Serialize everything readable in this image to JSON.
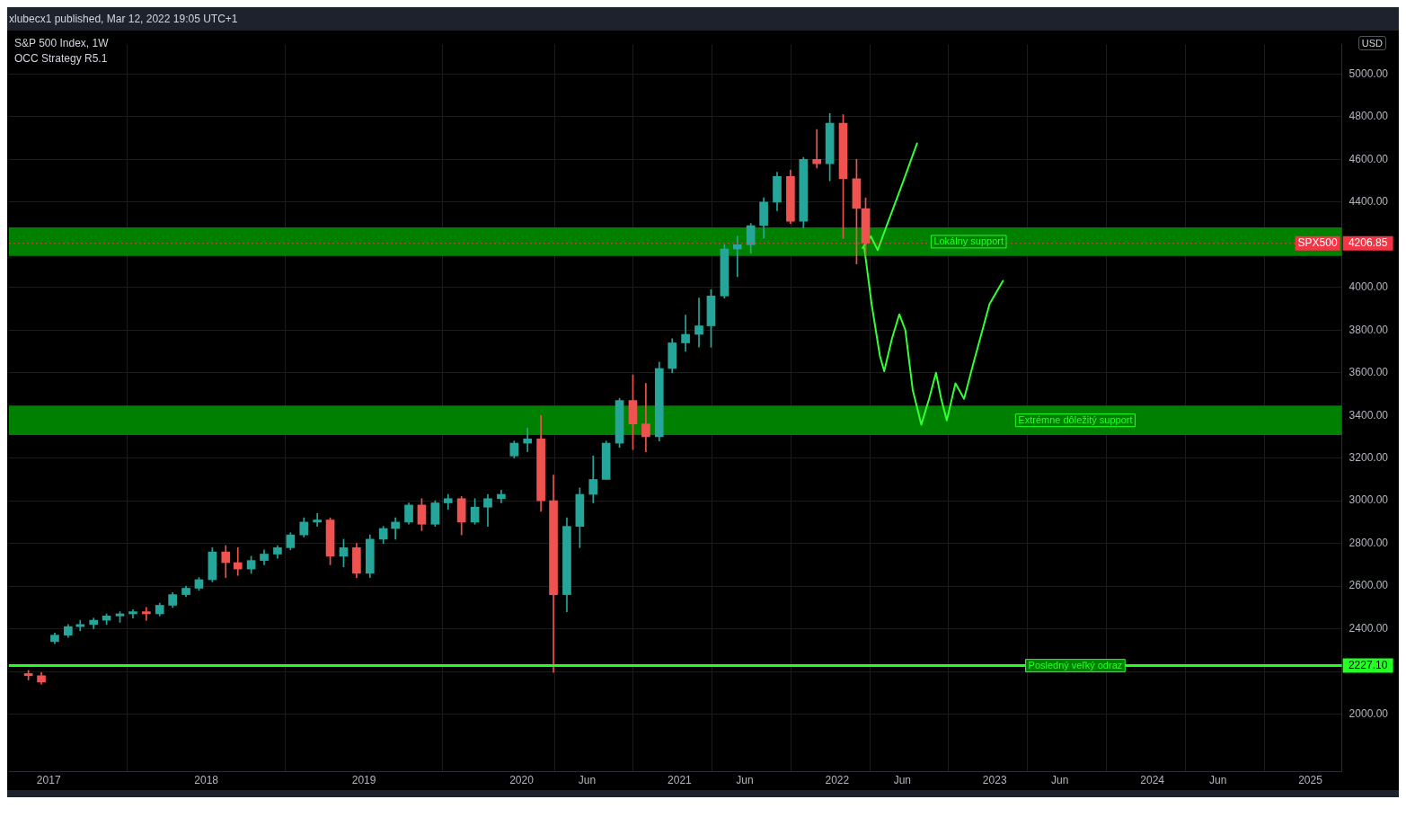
{
  "chart_data": {
    "type": "candlestick",
    "title": "S&P 500 Index, 1W",
    "subtitle": "OCC Strategy R5.1",
    "annotations": [
      "xlubecx1 published, Mar 12, 2022 19:05 UTC+1",
      "USD",
      "SPX500",
      "2227.10"
    ],
    "x": [
      "2016-11-15",
      "2016-12-15",
      "2017-01-15",
      "2017-02-15",
      "2017-03-15",
      "2017-04-15",
      "2017-05-15",
      "2017-06-15",
      "2017-07-15",
      "2017-08-15",
      "2017-09-15",
      "2017-10-15",
      "2017-11-15",
      "2017-12-15",
      "2018-01-15",
      "2018-02-15",
      "2018-03-15",
      "2018-04-15",
      "2018-05-15",
      "2018-06-15",
      "2018-07-15",
      "2018-08-15",
      "2018-09-15",
      "2018-10-15",
      "2018-11-15",
      "2018-12-15",
      "2019-01-15",
      "2019-02-15",
      "2019-03-15",
      "2019-04-15",
      "2019-05-15",
      "2019-06-15",
      "2019-07-15",
      "2019-08-15",
      "2019-09-15",
      "2019-10-15",
      "2019-11-15",
      "2019-12-15",
      "2020-01-15",
      "2020-02-15",
      "2020-03-15",
      "2020-04-15",
      "2020-05-15",
      "2020-06-15",
      "2020-07-15",
      "2020-08-15",
      "2020-09-15",
      "2020-10-15",
      "2020-11-15",
      "2020-12-15",
      "2021-01-15",
      "2021-02-15",
      "2021-03-15",
      "2021-04-15",
      "2021-05-15",
      "2021-06-15",
      "2021-07-15",
      "2021-08-15",
      "2021-09-15",
      "2021-10-15",
      "2021-11-15",
      "2021-12-15",
      "2022-01-15",
      "2022-02-15",
      "2022-03-08"
    ],
    "ohlc": [
      [
        2190,
        2205,
        2160,
        2180
      ],
      [
        2180,
        2195,
        2140,
        2150
      ],
      [
        2340,
        2380,
        2330,
        2370
      ],
      [
        2370,
        2420,
        2360,
        2410
      ],
      [
        2410,
        2440,
        2390,
        2420
      ],
      [
        2420,
        2450,
        2400,
        2440
      ],
      [
        2440,
        2470,
        2420,
        2460
      ],
      [
        2460,
        2480,
        2430,
        2470
      ],
      [
        2470,
        2490,
        2450,
        2480
      ],
      [
        2480,
        2500,
        2440,
        2470
      ],
      [
        2470,
        2520,
        2460,
        2510
      ],
      [
        2510,
        2570,
        2500,
        2560
      ],
      [
        2560,
        2600,
        2550,
        2590
      ],
      [
        2590,
        2640,
        2580,
        2630
      ],
      [
        2630,
        2780,
        2620,
        2760
      ],
      [
        2760,
        2790,
        2640,
        2710
      ],
      [
        2710,
        2780,
        2650,
        2680
      ],
      [
        2680,
        2740,
        2660,
        2720
      ],
      [
        2720,
        2770,
        2700,
        2750
      ],
      [
        2750,
        2790,
        2730,
        2780
      ],
      [
        2780,
        2850,
        2770,
        2840
      ],
      [
        2840,
        2920,
        2830,
        2900
      ],
      [
        2900,
        2940,
        2880,
        2910
      ],
      [
        2910,
        2920,
        2700,
        2740
      ],
      [
        2740,
        2820,
        2690,
        2780
      ],
      [
        2780,
        2800,
        2640,
        2660
      ],
      [
        2660,
        2840,
        2640,
        2820
      ],
      [
        2820,
        2880,
        2800,
        2870
      ],
      [
        2870,
        2920,
        2820,
        2900
      ],
      [
        2900,
        2990,
        2890,
        2980
      ],
      [
        2980,
        3010,
        2860,
        2890
      ],
      [
        2890,
        3000,
        2880,
        2990
      ],
      [
        2990,
        3030,
        2960,
        3010
      ],
      [
        3010,
        3020,
        2840,
        2900
      ],
      [
        2900,
        3010,
        2890,
        2970
      ],
      [
        2970,
        3030,
        2880,
        3010
      ],
      [
        3010,
        3050,
        2990,
        3030
      ],
      [
        3210,
        3280,
        3200,
        3270
      ],
      [
        3270,
        3340,
        3230,
        3290
      ],
      [
        3290,
        3400,
        2950,
        3000
      ],
      [
        3000,
        3120,
        2195,
        2560
      ],
      [
        2560,
        2920,
        2480,
        2880
      ],
      [
        2880,
        3060,
        2780,
        3030
      ],
      [
        3030,
        3210,
        2990,
        3100
      ],
      [
        3100,
        3280,
        3100,
        3270
      ],
      [
        3270,
        3480,
        3250,
        3470
      ],
      [
        3470,
        3590,
        3240,
        3360
      ],
      [
        3360,
        3550,
        3230,
        3300
      ],
      [
        3300,
        3650,
        3280,
        3620
      ],
      [
        3620,
        3760,
        3600,
        3740
      ],
      [
        3740,
        3870,
        3700,
        3780
      ],
      [
        3780,
        3950,
        3720,
        3820
      ],
      [
        3820,
        3990,
        3720,
        3960
      ],
      [
        3960,
        4200,
        3950,
        4180
      ],
      [
        4180,
        4240,
        4050,
        4200
      ],
      [
        4200,
        4300,
        4160,
        4290
      ],
      [
        4290,
        4420,
        4230,
        4400
      ],
      [
        4400,
        4540,
        4360,
        4520
      ],
      [
        4520,
        4550,
        4300,
        4310
      ],
      [
        4310,
        4610,
        4280,
        4600
      ],
      [
        4600,
        4740,
        4560,
        4580
      ],
      [
        4580,
        4815,
        4500,
        4770
      ],
      [
        4770,
        4810,
        4230,
        4510
      ],
      [
        4510,
        4600,
        4110,
        4370
      ],
      [
        4370,
        4420,
        4150,
        4206.85
      ]
    ],
    "colors": [
      "#ef5350",
      "#ef5350",
      "#26a69a",
      "#26a69a",
      "#26a69a",
      "#26a69a",
      "#26a69a",
      "#26a69a",
      "#26a69a",
      "#ef5350",
      "#26a69a",
      "#26a69a",
      "#26a69a",
      "#26a69a",
      "#26a69a",
      "#ef5350",
      "#ef5350",
      "#26a69a",
      "#26a69a",
      "#26a69a",
      "#26a69a",
      "#26a69a",
      "#26a69a",
      "#ef5350",
      "#26a69a",
      "#ef5350",
      "#26a69a",
      "#26a69a",
      "#26a69a",
      "#26a69a",
      "#ef5350",
      "#26a69a",
      "#26a69a",
      "#ef5350",
      "#26a69a",
      "#26a69a",
      "#26a69a",
      "#26a69a",
      "#26a69a",
      "#ef5350",
      "#ef5350",
      "#26a69a",
      "#26a69a",
      "#26a69a",
      "#26a69a",
      "#26a69a",
      "#ef5350",
      "#ef5350",
      "#26a69a",
      "#26a69a",
      "#26a69a",
      "#26a69a",
      "#26a69a",
      "#26a69a",
      "#26a69a",
      "#26a69a",
      "#26a69a",
      "#26a69a",
      "#ef5350",
      "#26a69a",
      "#ef5350",
      "#26a69a",
      "#ef5350",
      "#ef5350",
      "#ef5350"
    ],
    "series": [
      {
        "type": "line",
        "color": "#33ff33",
        "x": [
          "2022-03-01",
          "2022-03-20",
          "2022-04-05",
          "2022-04-25",
          "2022-06-01",
          "2022-07-05"
        ],
        "values": [
          4185,
          4240,
          4175,
          4285,
          4485,
          4675
        ]
      },
      {
        "type": "line",
        "color": "#33ff33",
        "x": [
          "2022-03-05",
          "2022-03-22",
          "2022-04-10",
          "2022-04-20",
          "2022-05-08",
          "2022-05-25",
          "2022-06-08",
          "2022-06-25",
          "2022-07-15",
          "2022-08-02",
          "2022-08-18",
          "2022-08-30",
          "2022-09-12",
          "2022-10-02",
          "2022-10-22",
          "2022-11-12",
          "2022-12-20",
          "2023-01-20"
        ],
        "values": [
          4185,
          3920,
          3680,
          3607,
          3760,
          3874,
          3800,
          3520,
          3357,
          3478,
          3600,
          3478,
          3377,
          3550,
          3478,
          3640,
          3922,
          4031
        ]
      }
    ],
    "xlim": [
      "2016-10-01",
      "2025-03-15"
    ],
    "xticks": [
      {
        "value": "2017",
        "label": "2017"
      },
      {
        "value": "2018",
        "label": "2018"
      },
      {
        "value": "2019",
        "label": "2019"
      },
      {
        "value": "2020",
        "label": "2020"
      },
      {
        "value": "2020-06",
        "label": "Jun"
      },
      {
        "value": "2021",
        "label": "2021"
      },
      {
        "value": "2021-06",
        "label": "Jun"
      },
      {
        "value": "2022",
        "label": "2022"
      },
      {
        "value": "2022-06",
        "label": "Jun"
      },
      {
        "value": "2023",
        "label": "2023"
      },
      {
        "value": "2023-06",
        "label": "Jun"
      },
      {
        "value": "2024",
        "label": "2024"
      },
      {
        "value": "2024-06",
        "label": "Jun"
      },
      {
        "value": "2025",
        "label": "2025"
      }
    ],
    "ylim": [
      1730,
      5140
    ],
    "yticks": [
      {
        "value": 2000,
        "label": "2000.00"
      },
      {
        "value": 2200,
        "label": null
      },
      {
        "value": 2400,
        "label": "2400.00"
      },
      {
        "value": 2600,
        "label": "2600.00"
      },
      {
        "value": 2800,
        "label": "2800.00"
      },
      {
        "value": 3000,
        "label": "3000.00"
      },
      {
        "value": 3200,
        "label": "3200.00"
      },
      {
        "value": 3400,
        "label": "3400.00"
      },
      {
        "value": 3600,
        "label": "3600.00"
      },
      {
        "value": 3800,
        "label": "3800.00"
      },
      {
        "value": 4000,
        "label": "4000.00"
      },
      {
        "value": 4200,
        "label": null
      },
      {
        "value": 4400,
        "label": "4400.00"
      },
      {
        "value": 4600,
        "label": "4600.00"
      },
      {
        "value": 4800,
        "label": "4800.00"
      },
      {
        "value": 5000,
        "label": "5000.00"
      }
    ],
    "bands": [
      {
        "axis": "y",
        "from": 4148,
        "to": 4281,
        "label": "Lokálny support",
        "color": "#008000"
      },
      {
        "axis": "y",
        "from": 3308,
        "to": 3446,
        "label": "Extrémne dôležitý support",
        "color": "#008000"
      }
    ],
    "ref_lines": [
      {
        "axis": "y",
        "value": 4206.85,
        "label": "4206.85",
        "color": "#f23645",
        "line_style": "dotted"
      },
      {
        "axis": "y",
        "value": 2227.1,
        "label": "Posledný veľký odraz",
        "color": "#22ff22",
        "line_style": "solid"
      }
    ],
    "grid": true,
    "legend": false,
    "marker": "none"
  }
}
